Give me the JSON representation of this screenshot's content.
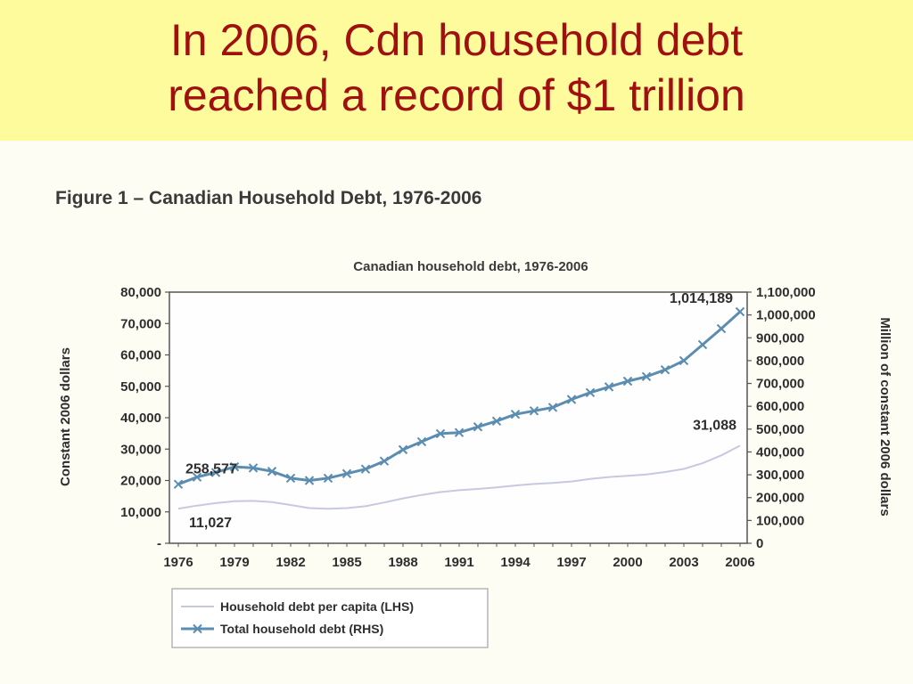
{
  "slide": {
    "title_line1": "In 2006, Cdn household debt",
    "title_line2": "reached a record of $1 trillion"
  },
  "figure": {
    "caption": "Figure 1 – Canadian Household Debt, 1976-2006"
  },
  "colors": {
    "header_bg": "#fdfb9c",
    "title_text": "#a01010",
    "total_series": "#5b8db0",
    "per_capita_series": "#c7c9df"
  },
  "chart_data": {
    "type": "line",
    "title": "Canadian household debt, 1976-2006",
    "x": [
      1976,
      1977,
      1978,
      1979,
      1980,
      1981,
      1982,
      1983,
      1984,
      1985,
      1986,
      1987,
      1988,
      1989,
      1990,
      1991,
      1992,
      1993,
      1994,
      1995,
      1996,
      1997,
      1998,
      1999,
      2000,
      2001,
      2002,
      2003,
      2004,
      2005,
      2006
    ],
    "x_ticks": [
      "1976",
      "1979",
      "1982",
      "1985",
      "1988",
      "1991",
      "1994",
      "1997",
      "2000",
      "2003",
      "2006"
    ],
    "y_left": {
      "label": "Constant 2006 dollars",
      "range": [
        0,
        80000
      ],
      "ticks": [
        "-",
        "10,000",
        "20,000",
        "30,000",
        "40,000",
        "50,000",
        "60,000",
        "70,000",
        "80,000"
      ]
    },
    "y_right": {
      "label": "Million of constant 2006 dollars",
      "range": [
        0,
        1100000
      ],
      "ticks": [
        "0",
        "100,000",
        "200,000",
        "300,000",
        "400,000",
        "500,000",
        "600,000",
        "700,000",
        "800,000",
        "900,000",
        "1,000,000",
        "1,100,000"
      ]
    },
    "series": [
      {
        "name": "Household debt per capita (LHS)",
        "axis": "left",
        "marker": "none",
        "values": [
          11027,
          12000,
          12800,
          13400,
          13500,
          13100,
          12200,
          11200,
          11000,
          11200,
          11800,
          13000,
          14300,
          15400,
          16300,
          16900,
          17300,
          17800,
          18400,
          18900,
          19200,
          19700,
          20500,
          21100,
          21500,
          21900,
          22700,
          23700,
          25500,
          28000,
          31088
        ]
      },
      {
        "name": "Total household debt (RHS)",
        "axis": "right",
        "marker": "x",
        "values": [
          258577,
          290000,
          310000,
          335000,
          330000,
          315000,
          285000,
          275000,
          285000,
          305000,
          325000,
          360000,
          410000,
          445000,
          480000,
          485000,
          510000,
          535000,
          565000,
          580000,
          595000,
          630000,
          660000,
          685000,
          710000,
          730000,
          760000,
          800000,
          870000,
          940000,
          1014189
        ]
      }
    ],
    "annotations": [
      {
        "text": "258,577",
        "series": 1,
        "index": 0
      },
      {
        "text": "11,027",
        "series": 0,
        "index": 0
      },
      {
        "text": "1,014,189",
        "series": 1,
        "index": 30
      },
      {
        "text": "31,088",
        "series": 0,
        "index": 30
      }
    ],
    "grid": false,
    "legend": "bottom-left"
  }
}
